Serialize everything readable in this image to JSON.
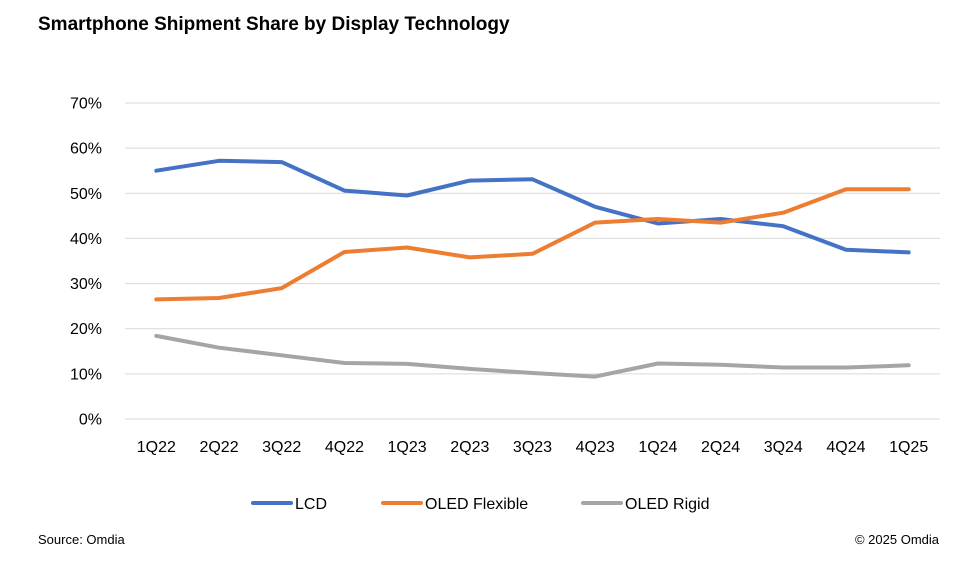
{
  "chart_data": {
    "type": "line",
    "title": "Smartphone Shipment Share by Display Technology",
    "categories": [
      "1Q22",
      "2Q22",
      "3Q22",
      "4Q22",
      "1Q23",
      "2Q23",
      "3Q23",
      "4Q23",
      "1Q24",
      "2Q24",
      "3Q24",
      "4Q24",
      "1Q25"
    ],
    "ylim": [
      0,
      70
    ],
    "yticks": [
      "0%",
      "10%",
      "20%",
      "30%",
      "40%",
      "50%",
      "60%",
      "70%"
    ],
    "ytick_values": [
      0,
      10,
      20,
      30,
      40,
      50,
      60,
      70
    ],
    "grid": true,
    "legend_position": "bottom",
    "series": [
      {
        "name": "LCD",
        "color": "#4472C4",
        "values": [
          55,
          57.2,
          56.9,
          50.6,
          49.5,
          52.8,
          53.1,
          47,
          43.3,
          44.3,
          42.7,
          37.5,
          36.9
        ]
      },
      {
        "name": "OLED Flexible",
        "color": "#ED7D31",
        "values": [
          26.5,
          26.8,
          29,
          37,
          38,
          35.8,
          36.6,
          43.5,
          44.3,
          43.5,
          45.7,
          50.9,
          50.9
        ]
      },
      {
        "name": "OLED Rigid",
        "color": "#A5A5A5",
        "values": [
          18.4,
          15.8,
          14.1,
          12.4,
          12.2,
          11.1,
          10.2,
          9.4,
          12.3,
          12,
          11.4,
          11.4,
          11.9
        ]
      }
    ]
  },
  "footer": {
    "source": "Source: Omdia",
    "copyright": "© 2025 Omdia"
  }
}
